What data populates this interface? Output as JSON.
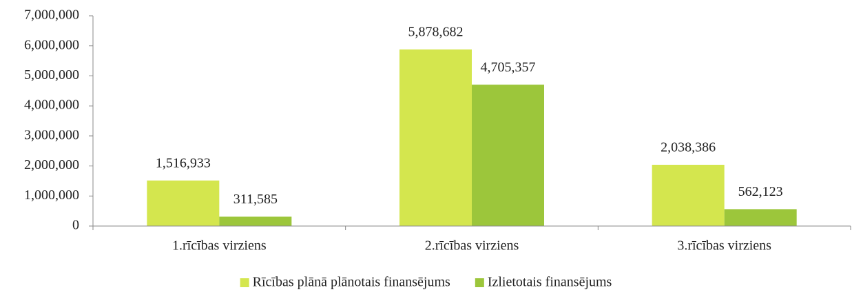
{
  "chart_data": {
    "type": "bar",
    "categories": [
      "1.rīcības virziens",
      "2.rīcības virziens",
      "3.rīcības virziens"
    ],
    "series": [
      {
        "name": "Rīcības plānā plānotais finansējums",
        "color": "#d4e64e",
        "values": [
          1516933,
          5878682,
          2038386
        ],
        "value_labels": [
          "1,516,933",
          "5,878,682",
          "2,038,386"
        ]
      },
      {
        "name": "Izlietotais finansējums",
        "color": "#9cc63b",
        "values": [
          311585,
          4705357,
          562123
        ],
        "value_labels": [
          "311,585",
          "4,705,357",
          "562,123"
        ]
      }
    ],
    "ylim": [
      0,
      7000000
    ],
    "yticks": [
      0,
      {
        "value": 1000000,
        "label": "1,000,000"
      },
      {
        "value": 2000000,
        "label": "2,000,000"
      },
      {
        "value": 3000000,
        "label": "3,000,000"
      },
      {
        "value": 4000000,
        "label": "4,000,000"
      },
      {
        "value": 5000000,
        "label": "5,000,000"
      },
      {
        "value": 6000000,
        "label": "6,000,000"
      },
      {
        "value": 7000000,
        "label": "7,000,000"
      }
    ],
    "grid": false,
    "legend": "bottom"
  }
}
